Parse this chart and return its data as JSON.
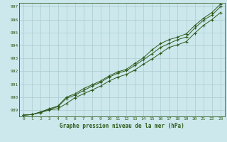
{
  "xlabel": "Graphe pression niveau de la mer (hPa)",
  "bg_color": "#cce8ec",
  "grid_color": "#aaccd0",
  "line_color": "#2d5a1b",
  "marker_color": "#2d5a1b",
  "ylim": [
    988.5,
    997.3
  ],
  "xlim": [
    -0.5,
    23.5
  ],
  "yticks": [
    989,
    990,
    991,
    992,
    993,
    994,
    995,
    996,
    997
  ],
  "xticks": [
    0,
    1,
    2,
    3,
    4,
    5,
    6,
    7,
    8,
    9,
    10,
    11,
    12,
    13,
    14,
    15,
    16,
    17,
    18,
    19,
    20,
    21,
    22,
    23
  ],
  "series1": [
    988.6,
    988.65,
    988.8,
    989.0,
    989.1,
    989.5,
    989.95,
    990.25,
    990.55,
    990.85,
    991.25,
    991.55,
    991.75,
    992.1,
    992.55,
    992.95,
    993.4,
    993.85,
    994.05,
    994.3,
    994.95,
    995.55,
    996.0,
    996.55
  ],
  "series2": [
    988.6,
    988.65,
    988.85,
    989.05,
    989.25,
    989.9,
    990.15,
    990.5,
    990.85,
    991.15,
    991.55,
    991.85,
    992.05,
    992.45,
    992.9,
    993.35,
    993.85,
    994.15,
    994.45,
    994.65,
    995.35,
    995.95,
    996.35,
    997.0
  ],
  "series3": [
    988.6,
    988.65,
    988.85,
    989.1,
    989.3,
    990.0,
    990.25,
    990.65,
    990.95,
    991.25,
    991.65,
    991.95,
    992.15,
    992.6,
    993.05,
    993.65,
    994.15,
    994.45,
    994.65,
    994.9,
    995.55,
    996.1,
    996.55,
    997.2
  ]
}
